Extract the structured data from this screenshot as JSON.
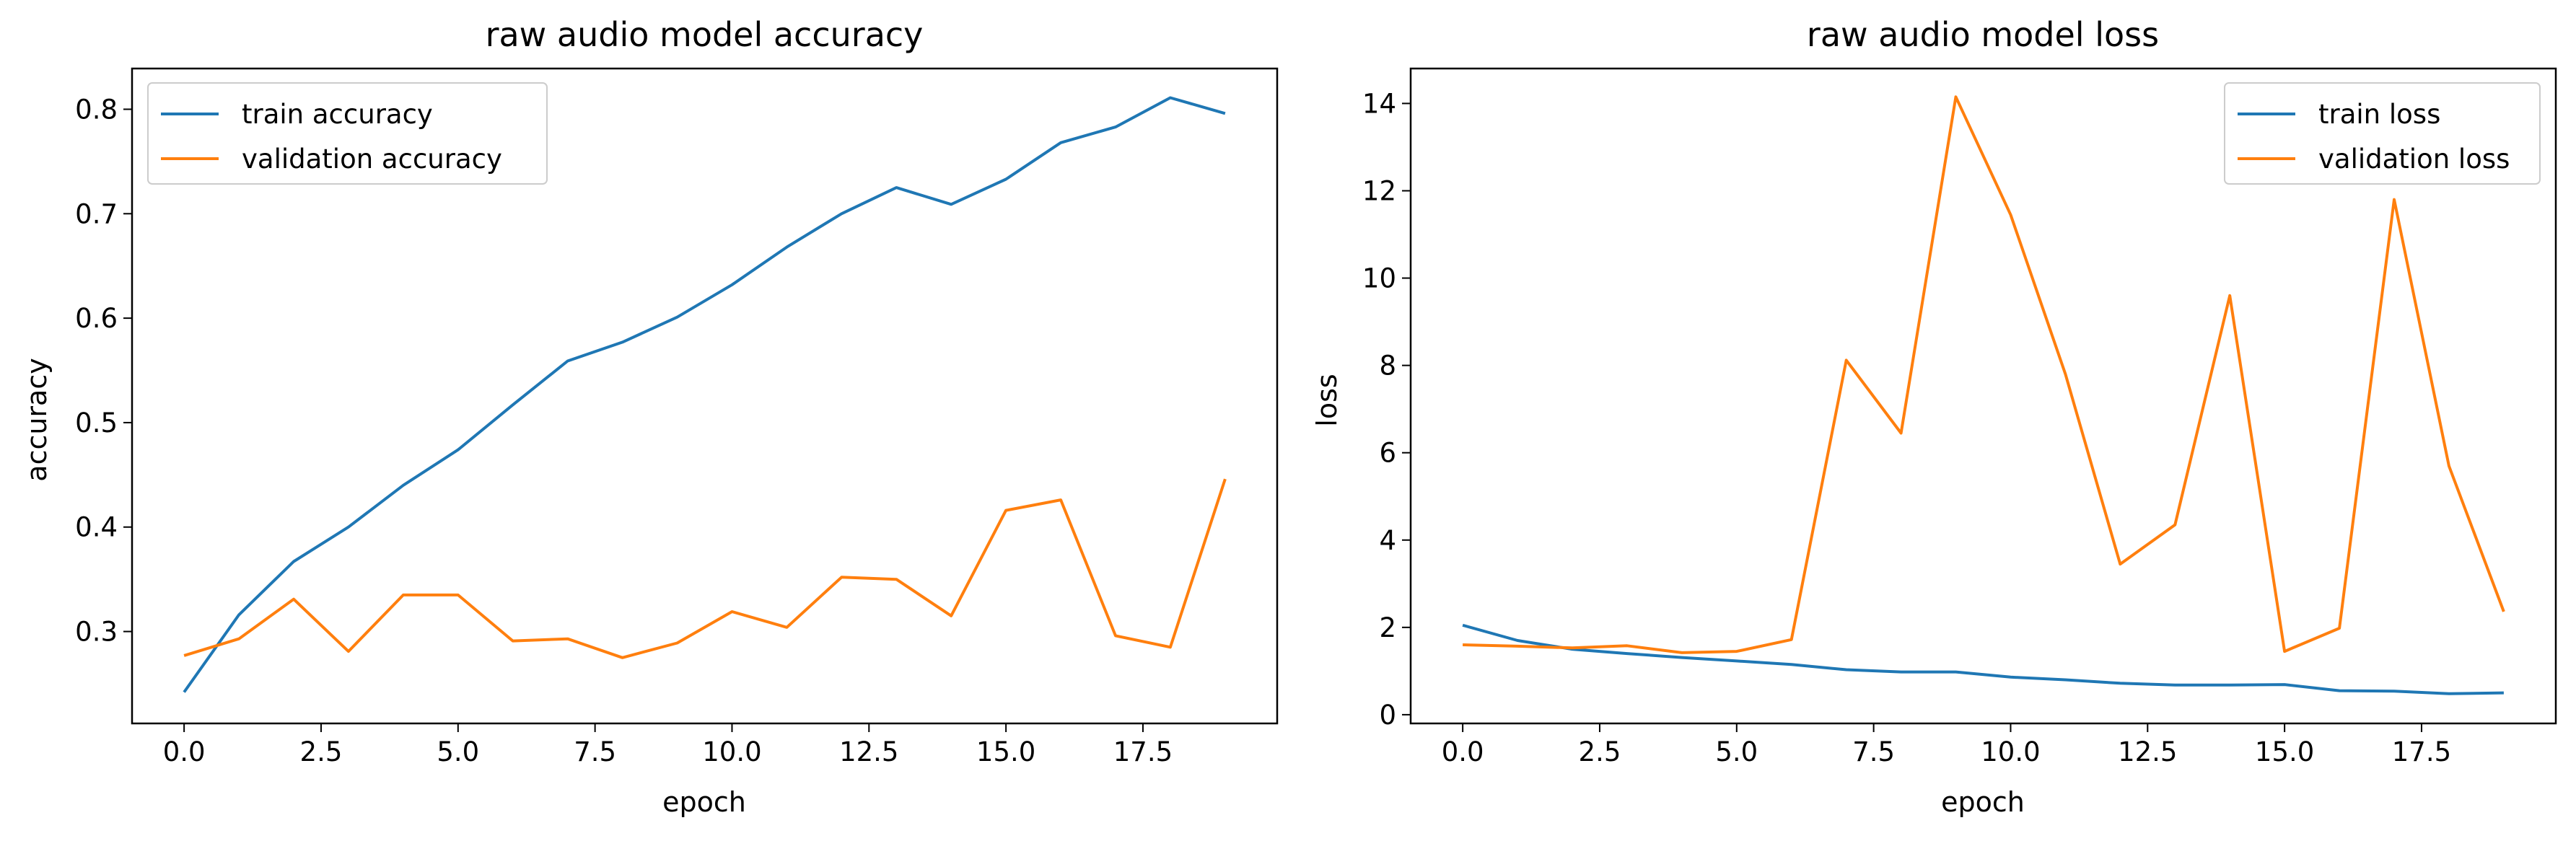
{
  "chart_data": [
    {
      "type": "line",
      "title": "raw audio model accuracy",
      "xlabel": "epoch",
      "ylabel": "accuracy",
      "xlim": [
        -0.95,
        19.95
      ],
      "ylim": [
        0.212,
        0.839
      ],
      "xticks": [
        0.0,
        2.5,
        5.0,
        7.5,
        10.0,
        12.5,
        15.0,
        17.5
      ],
      "xtick_labels": [
        "0.0",
        "2.5",
        "5.0",
        "7.5",
        "10.0",
        "12.5",
        "15.0",
        "17.5"
      ],
      "yticks": [
        0.3,
        0.4,
        0.5,
        0.6,
        0.7,
        0.8
      ],
      "ytick_labels": [
        "0.3",
        "0.4",
        "0.5",
        "0.6",
        "0.7",
        "0.8"
      ],
      "legend_position": "top-left",
      "grid": false,
      "x": [
        0,
        1,
        2,
        3,
        4,
        5,
        6,
        7,
        8,
        9,
        10,
        11,
        12,
        13,
        14,
        15,
        16,
        17,
        18,
        19
      ],
      "series": [
        {
          "name": "train accuracy",
          "color": "#1f77b4",
          "values": [
            0.242,
            0.316,
            0.367,
            0.4,
            0.44,
            0.474,
            0.517,
            0.559,
            0.577,
            0.601,
            0.632,
            0.668,
            0.7,
            0.725,
            0.709,
            0.733,
            0.768,
            0.783,
            0.811,
            0.796
          ]
        },
        {
          "name": "validation accuracy",
          "color": "#ff7f0e",
          "values": [
            0.277,
            0.293,
            0.331,
            0.281,
            0.335,
            0.335,
            0.291,
            0.293,
            0.275,
            0.289,
            0.319,
            0.304,
            0.352,
            0.35,
            0.315,
            0.416,
            0.426,
            0.296,
            0.285,
            0.446
          ]
        }
      ]
    },
    {
      "type": "line",
      "title": "raw audio model loss",
      "xlabel": "epoch",
      "ylabel": "loss",
      "xlim": [
        -0.95,
        19.95
      ],
      "ylim": [
        -0.2,
        14.8
      ],
      "xticks": [
        0.0,
        2.5,
        5.0,
        7.5,
        10.0,
        12.5,
        15.0,
        17.5
      ],
      "xtick_labels": [
        "0.0",
        "2.5",
        "5.0",
        "7.5",
        "10.0",
        "12.5",
        "15.0",
        "17.5"
      ],
      "yticks": [
        0,
        2,
        4,
        6,
        8,
        10,
        12,
        14
      ],
      "ytick_labels": [
        "0",
        "2",
        "4",
        "6",
        "8",
        "10",
        "12",
        "14"
      ],
      "legend_position": "top-right",
      "grid": false,
      "x": [
        0,
        1,
        2,
        3,
        4,
        5,
        6,
        7,
        8,
        9,
        10,
        11,
        12,
        13,
        14,
        15,
        16,
        17,
        18,
        19
      ],
      "series": [
        {
          "name": "train loss",
          "color": "#1f77b4",
          "values": [
            2.05,
            1.7,
            1.5,
            1.4,
            1.31,
            1.23,
            1.15,
            1.03,
            0.98,
            0.98,
            0.86,
            0.8,
            0.72,
            0.68,
            0.68,
            0.69,
            0.55,
            0.54,
            0.48,
            0.5
          ]
        },
        {
          "name": "validation loss",
          "color": "#ff7f0e",
          "values": [
            1.6,
            1.57,
            1.53,
            1.58,
            1.42,
            1.45,
            1.72,
            8.12,
            6.45,
            14.15,
            11.45,
            7.8,
            3.45,
            4.35,
            9.6,
            1.45,
            1.98,
            11.8,
            5.7,
            2.36
          ]
        }
      ]
    }
  ]
}
